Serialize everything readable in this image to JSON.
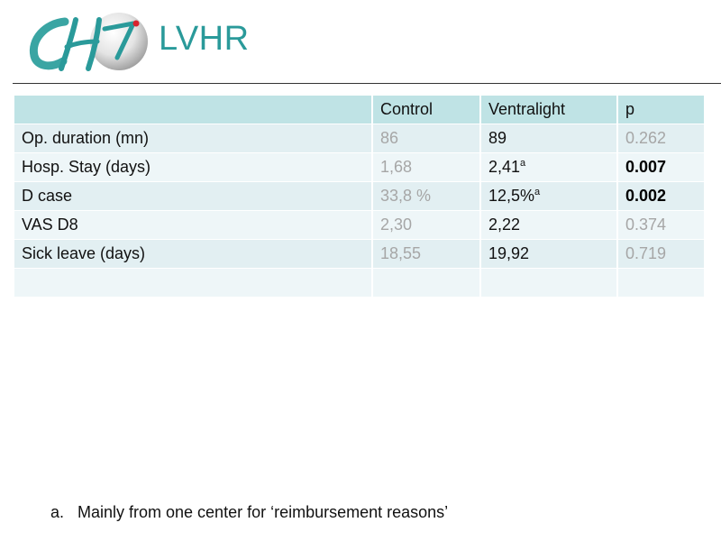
{
  "slide": {
    "title": "LVHR"
  },
  "colors": {
    "accent": "#2a9a9a",
    "header_bg": "#bfe3e5",
    "row_bg_a": "#e2eff2",
    "row_bg_b": "#eef6f8"
  },
  "logo": {
    "icon": "ch-logo-icon"
  },
  "table": {
    "headers": [
      "",
      "Control",
      "Ventralight",
      "p"
    ],
    "rows": [
      {
        "label": "Op. duration (mn)",
        "control": "86",
        "ventralight": "89",
        "ventralight_note": "",
        "p": "0.262"
      },
      {
        "label": "Hosp. Stay (days)",
        "control": "1,68",
        "ventralight": "2,41",
        "ventralight_note": "a",
        "p": "0.007"
      },
      {
        "label": "D case",
        "control": "33,8 %",
        "ventralight": "12,5%",
        "ventralight_note": "a",
        "p": "0.002"
      },
      {
        "label": "VAS D8",
        "control": "2,30",
        "ventralight": "2,22",
        "ventralight_note": "",
        "p": "0.374"
      },
      {
        "label": "Sick leave (days)",
        "control": "18,55",
        "ventralight": "19,92",
        "ventralight_note": "",
        "p": "0.719"
      },
      {
        "label": "",
        "control": "",
        "ventralight": "",
        "ventralight_note": "",
        "p": ""
      }
    ]
  },
  "footnote": {
    "marker": "a.",
    "text": "Mainly from one center for ‘reimbursement reasons’"
  }
}
